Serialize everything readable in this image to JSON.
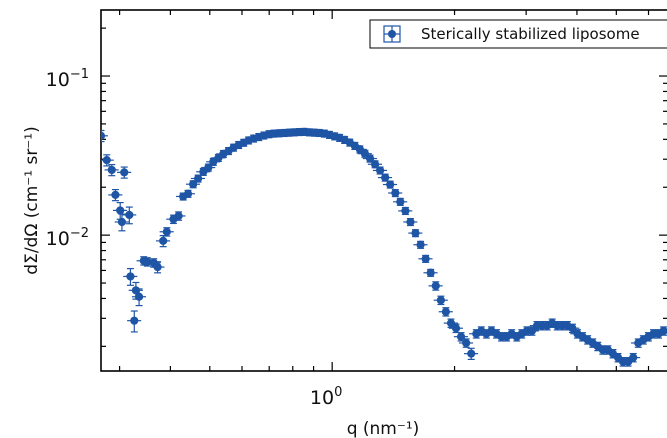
{
  "chart_data": {
    "type": "scatter",
    "xscale": "log",
    "yscale": "log",
    "xlim": [
      0.27,
      6.7
    ],
    "ylim": [
      0.0014,
      0.26
    ],
    "xlabel": "q (nm⁻¹)",
    "ylabel": "dΣ/dΩ (cm⁻¹ sr⁻¹)",
    "x_ticks": [
      {
        "base": "10",
        "exp": "0",
        "value": 1.0
      }
    ],
    "y_ticks": [
      {
        "base": "10",
        "exp": "−2",
        "value": 0.01
      },
      {
        "base": "10",
        "exp": "−1",
        "value": 0.1
      }
    ],
    "legend": {
      "position": "top-right",
      "entries": [
        {
          "label": "Sterically stabilized liposome",
          "color": "#1f55a5"
        }
      ]
    },
    "series": [
      {
        "name": "Sterically stabilized liposome",
        "color": "#1f55a5",
        "x": [
          0.27,
          0.279,
          0.287,
          0.293,
          0.301,
          0.304,
          0.308,
          0.317,
          0.319,
          0.326,
          0.329,
          0.335,
          0.344,
          0.351,
          0.364,
          0.372,
          0.384,
          0.392,
          0.407,
          0.419,
          0.43,
          0.442,
          0.455,
          0.468,
          0.482,
          0.496,
          0.51,
          0.525,
          0.54,
          0.556,
          0.572,
          0.589,
          0.606,
          0.623,
          0.641,
          0.66,
          0.679,
          0.699,
          0.719,
          0.74,
          0.762,
          0.784,
          0.806,
          0.83,
          0.854,
          0.879,
          0.904,
          0.93,
          0.957,
          0.985,
          1.014,
          1.043,
          1.073,
          1.105,
          1.137,
          1.17,
          1.204,
          1.239,
          1.275,
          1.312,
          1.35,
          1.389,
          1.43,
          1.471,
          1.514,
          1.558,
          1.603,
          1.65,
          1.698,
          1.747,
          1.798,
          1.851,
          1.904,
          1.96,
          2.017,
          2.075,
          2.136,
          2.198,
          2.262,
          2.327,
          2.395,
          2.465,
          2.536,
          2.61,
          2.686,
          2.764,
          2.845,
          2.927,
          3.013,
          3.1,
          3.19,
          3.283,
          3.379,
          3.477,
          3.578,
          3.682,
          3.789,
          3.9,
          4.013,
          4.13,
          4.25,
          4.374,
          4.501,
          4.632,
          4.767,
          4.905,
          5.048,
          5.195,
          5.346,
          5.502,
          5.661,
          5.826,
          5.996,
          6.17,
          6.35,
          6.534
        ],
        "y": [
          0.0421,
          0.0296,
          0.0257,
          0.0179,
          0.0143,
          0.0121,
          0.0248,
          0.0134,
          0.0055,
          0.0029,
          0.0045,
          0.0041,
          0.0069,
          0.0068,
          0.0067,
          0.0063,
          0.0092,
          0.0105,
          0.0126,
          0.0132,
          0.0175,
          0.0182,
          0.0209,
          0.0227,
          0.025,
          0.0266,
          0.0289,
          0.0306,
          0.0324,
          0.0338,
          0.0355,
          0.0369,
          0.0381,
          0.0394,
          0.0405,
          0.0414,
          0.0423,
          0.0431,
          0.0435,
          0.0437,
          0.0439,
          0.0441,
          0.0443,
          0.0445,
          0.0446,
          0.0443,
          0.0441,
          0.0439,
          0.0435,
          0.0427,
          0.0418,
          0.0409,
          0.0397,
          0.0382,
          0.0364,
          0.0346,
          0.0325,
          0.0303,
          0.0279,
          0.0255,
          0.023,
          0.0208,
          0.0184,
          0.0162,
          0.0142,
          0.0121,
          0.0103,
          0.0087,
          0.0071,
          0.0058,
          0.0048,
          0.0039,
          0.0033,
          0.0028,
          0.0026,
          0.0023,
          0.0021,
          0.0018,
          0.0024,
          0.0025,
          0.0024,
          0.0025,
          0.0024,
          0.0023,
          0.0023,
          0.0024,
          0.0023,
          0.0024,
          0.0025,
          0.0025,
          0.0027,
          0.0027,
          0.0027,
          0.0028,
          0.0027,
          0.0027,
          0.0027,
          0.0026,
          0.0024,
          0.0023,
          0.0022,
          0.0021,
          0.002,
          0.0019,
          0.0019,
          0.0018,
          0.0017,
          0.0016,
          0.0016,
          0.0017,
          0.0021,
          0.0022,
          0.0023,
          0.0024,
          0.0024,
          0.0025
        ],
        "x_err_rel": 0.08,
        "y_err_rel": [
          0.08,
          0.08,
          0.08,
          0.08,
          0.12,
          0.12,
          0.08,
          0.12,
          0.12,
          0.15,
          0.12,
          0.12,
          0.06,
          0.06,
          0.06,
          0.08,
          0.08,
          0.06,
          0.06,
          0.06,
          0.05,
          0.05,
          0.05,
          0.05,
          0.05,
          0.05,
          0.05,
          0.05,
          0.05,
          0.05,
          0.05,
          0.05,
          0.05,
          0.05,
          0.05,
          0.05,
          0.05,
          0.05,
          0.05,
          0.05,
          0.05,
          0.05,
          0.05,
          0.05,
          0.05,
          0.05,
          0.05,
          0.05,
          0.05,
          0.05,
          0.05,
          0.05,
          0.05,
          0.05,
          0.05,
          0.05,
          0.05,
          0.05,
          0.05,
          0.05,
          0.05,
          0.05,
          0.05,
          0.05,
          0.05,
          0.05,
          0.05,
          0.05,
          0.05,
          0.05,
          0.06,
          0.06,
          0.06,
          0.06,
          0.06,
          0.06,
          0.06,
          0.08,
          0.06,
          0.06,
          0.06,
          0.06,
          0.06,
          0.06,
          0.06,
          0.06,
          0.06,
          0.06,
          0.06,
          0.06,
          0.06,
          0.06,
          0.06,
          0.06,
          0.06,
          0.06,
          0.06,
          0.06,
          0.06,
          0.06,
          0.06,
          0.06,
          0.06,
          0.06,
          0.06,
          0.06,
          0.06,
          0.06,
          0.06,
          0.06,
          0.06,
          0.06,
          0.06,
          0.06,
          0.06,
          0.06
        ]
      }
    ]
  }
}
